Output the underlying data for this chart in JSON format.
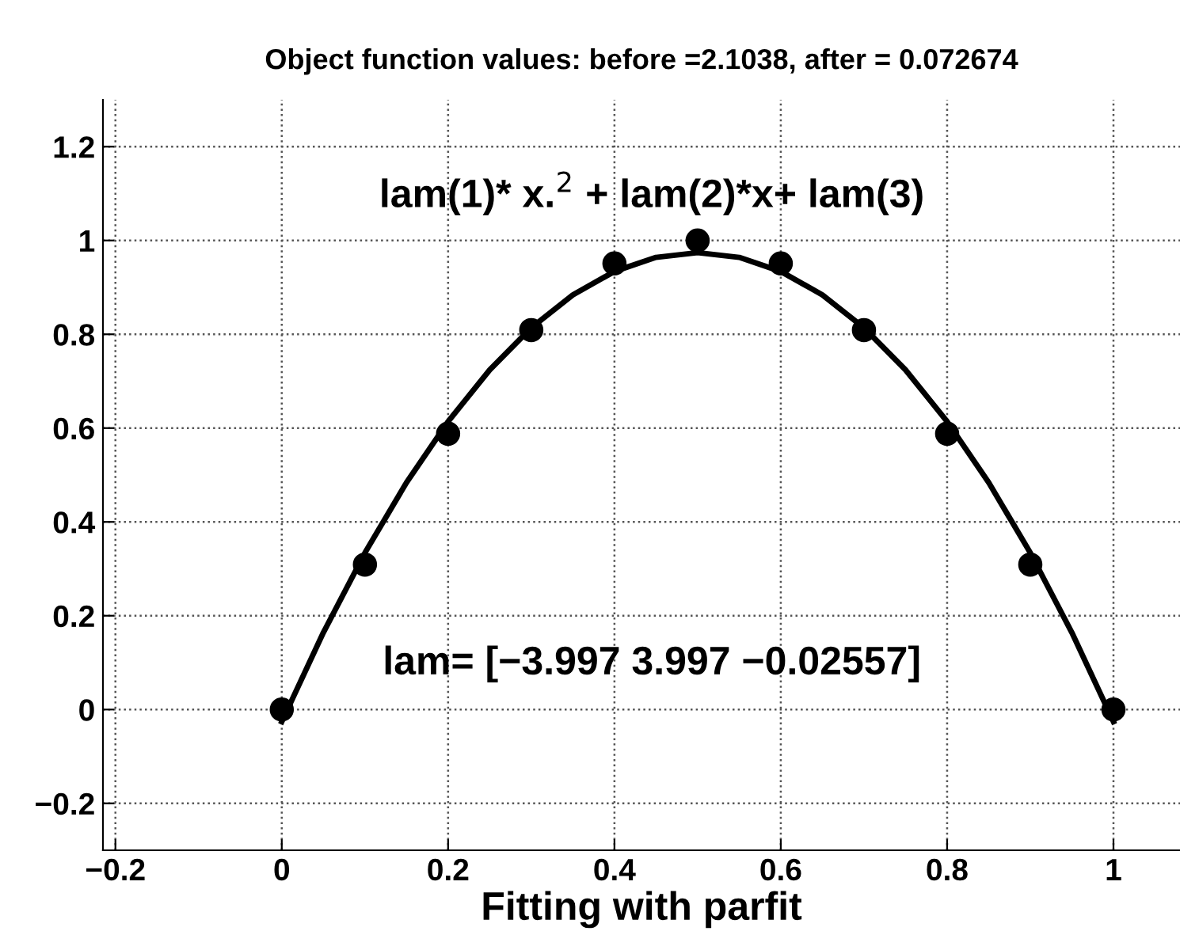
{
  "chart_data": {
    "type": "line",
    "title": "Object function values: before =2.1038, after = 0.072674",
    "xlabel": "Fitting with parfit",
    "annotations": [
      "lam(1)* x.$^{2}$ + lam(2)*x+ lam(3)",
      "lam= [−3.997 3.997 −0.02557]"
    ],
    "series": [
      {
        "type": "scatter",
        "color": "#000000",
        "marker": "circle",
        "x": [
          0,
          0.1,
          0.2,
          0.3,
          0.4,
          0.5,
          0.6,
          0.7,
          0.8,
          0.9,
          1
        ],
        "values": [
          0,
          0.309,
          0.588,
          0.809,
          0.951,
          1,
          0.951,
          0.809,
          0.588,
          0.309,
          0
        ]
      },
      {
        "color": "#000000",
        "line_style": "solid",
        "x": [
          0,
          0.05,
          0.1,
          0.15,
          0.2,
          0.25,
          0.3,
          0.35,
          0.4,
          0.45,
          0.5,
          0.55,
          0.6,
          0.65,
          0.7,
          0.75,
          0.8,
          0.85,
          0.9,
          0.95,
          1
        ],
        "values": [
          -0.026,
          0.164,
          0.334,
          0.484,
          0.614,
          0.724,
          0.814,
          0.884,
          0.934,
          0.964,
          0.974,
          0.964,
          0.934,
          0.884,
          0.814,
          0.724,
          0.614,
          0.484,
          0.334,
          0.164,
          -0.026
        ]
      }
    ],
    "xlim": [
      -0.215,
      1.08
    ],
    "ylim": [
      -0.3,
      1.3
    ],
    "xticks": [
      {
        "value": -0.2,
        "label": "−0.2"
      },
      0,
      0.2,
      0.4,
      0.6,
      0.8,
      1
    ],
    "yticks": [
      {
        "value": -0.2,
        "label": "−0.2"
      },
      0,
      0.2,
      0.4,
      0.6,
      0.8,
      1,
      1.2
    ],
    "grid": true
  }
}
